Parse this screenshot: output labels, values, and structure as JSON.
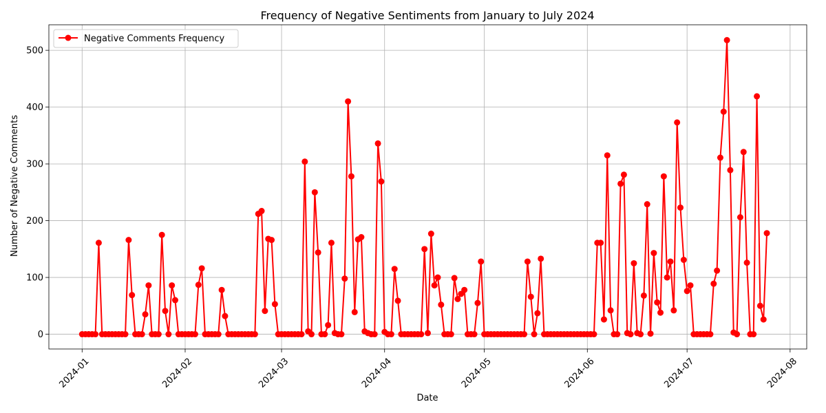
{
  "chart_data": {
    "type": "line",
    "title": "Frequency of Negative Sentiments from January to July 2024",
    "xlabel": "Date",
    "ylabel": "Number of Negative Comments",
    "x_ticks": [
      "2024-01",
      "2024-02",
      "2024-03",
      "2024-04",
      "2024-05",
      "2024-06",
      "2024-07",
      "2024-08"
    ],
    "y_ticks": [
      0,
      100,
      200,
      300,
      400,
      500
    ],
    "xlim": [
      "2023-12-22",
      "2024-08-06"
    ],
    "ylim": [
      -26,
      545
    ],
    "grid": true,
    "legend_position": "top-left",
    "colors": {
      "series": "#ff0000",
      "grid": "#b0b0b0"
    },
    "series": [
      {
        "name": "Negative Comments Frequency",
        "points": [
          [
            "2024-01-01",
            0
          ],
          [
            "2024-01-02",
            0
          ],
          [
            "2024-01-03",
            0
          ],
          [
            "2024-01-04",
            0
          ],
          [
            "2024-01-05",
            0
          ],
          [
            "2024-01-06",
            161
          ],
          [
            "2024-01-07",
            0
          ],
          [
            "2024-01-08",
            0
          ],
          [
            "2024-01-09",
            0
          ],
          [
            "2024-01-10",
            0
          ],
          [
            "2024-01-11",
            0
          ],
          [
            "2024-01-12",
            0
          ],
          [
            "2024-01-13",
            0
          ],
          [
            "2024-01-14",
            0
          ],
          [
            "2024-01-15",
            166
          ],
          [
            "2024-01-16",
            69
          ],
          [
            "2024-01-17",
            0
          ],
          [
            "2024-01-18",
            0
          ],
          [
            "2024-01-19",
            0
          ],
          [
            "2024-01-20",
            35
          ],
          [
            "2024-01-21",
            86
          ],
          [
            "2024-01-22",
            0
          ],
          [
            "2024-01-23",
            0
          ],
          [
            "2024-01-24",
            0
          ],
          [
            "2024-01-25",
            175
          ],
          [
            "2024-01-26",
            41
          ],
          [
            "2024-01-27",
            0
          ],
          [
            "2024-01-28",
            86
          ],
          [
            "2024-01-29",
            60
          ],
          [
            "2024-01-30",
            0
          ],
          [
            "2024-01-31",
            0
          ],
          [
            "2024-02-01",
            0
          ],
          [
            "2024-02-02",
            0
          ],
          [
            "2024-02-03",
            0
          ],
          [
            "2024-02-04",
            0
          ],
          [
            "2024-02-05",
            87
          ],
          [
            "2024-02-06",
            116
          ],
          [
            "2024-02-07",
            0
          ],
          [
            "2024-02-08",
            0
          ],
          [
            "2024-02-09",
            0
          ],
          [
            "2024-02-10",
            0
          ],
          [
            "2024-02-11",
            0
          ],
          [
            "2024-02-12",
            78
          ],
          [
            "2024-02-13",
            32
          ],
          [
            "2024-02-14",
            0
          ],
          [
            "2024-02-15",
            0
          ],
          [
            "2024-02-16",
            0
          ],
          [
            "2024-02-17",
            0
          ],
          [
            "2024-02-18",
            0
          ],
          [
            "2024-02-19",
            0
          ],
          [
            "2024-02-20",
            0
          ],
          [
            "2024-02-21",
            0
          ],
          [
            "2024-02-22",
            0
          ],
          [
            "2024-02-23",
            212
          ],
          [
            "2024-02-24",
            217
          ],
          [
            "2024-02-25",
            41
          ],
          [
            "2024-02-26",
            168
          ],
          [
            "2024-02-27",
            166
          ],
          [
            "2024-02-28",
            53
          ],
          [
            "2024-02-29",
            0
          ],
          [
            "2024-03-01",
            0
          ],
          [
            "2024-03-02",
            0
          ],
          [
            "2024-03-03",
            0
          ],
          [
            "2024-03-04",
            0
          ],
          [
            "2024-03-05",
            0
          ],
          [
            "2024-03-06",
            0
          ],
          [
            "2024-03-07",
            0
          ],
          [
            "2024-03-08",
            304
          ],
          [
            "2024-03-09",
            5
          ],
          [
            "2024-03-10",
            0
          ],
          [
            "2024-03-11",
            250
          ],
          [
            "2024-03-12",
            144
          ],
          [
            "2024-03-13",
            0
          ],
          [
            "2024-03-14",
            0
          ],
          [
            "2024-03-15",
            16
          ],
          [
            "2024-03-16",
            161
          ],
          [
            "2024-03-17",
            2
          ],
          [
            "2024-03-18",
            0
          ],
          [
            "2024-03-19",
            0
          ],
          [
            "2024-03-20",
            98
          ],
          [
            "2024-03-21",
            410
          ],
          [
            "2024-03-22",
            278
          ],
          [
            "2024-03-23",
            39
          ],
          [
            "2024-03-24",
            167
          ],
          [
            "2024-03-25",
            171
          ],
          [
            "2024-03-26",
            5
          ],
          [
            "2024-03-27",
            2
          ],
          [
            "2024-03-28",
            0
          ],
          [
            "2024-03-29",
            0
          ],
          [
            "2024-03-30",
            336
          ],
          [
            "2024-03-31",
            269
          ],
          [
            "2024-04-01",
            4
          ],
          [
            "2024-04-02",
            0
          ],
          [
            "2024-04-03",
            0
          ],
          [
            "2024-04-04",
            115
          ],
          [
            "2024-04-05",
            59
          ],
          [
            "2024-04-06",
            0
          ],
          [
            "2024-04-07",
            0
          ],
          [
            "2024-04-08",
            0
          ],
          [
            "2024-04-09",
            0
          ],
          [
            "2024-04-10",
            0
          ],
          [
            "2024-04-11",
            0
          ],
          [
            "2024-04-12",
            0
          ],
          [
            "2024-04-13",
            150
          ],
          [
            "2024-04-14",
            2
          ],
          [
            "2024-04-15",
            177
          ],
          [
            "2024-04-16",
            86
          ],
          [
            "2024-04-17",
            100
          ],
          [
            "2024-04-18",
            52
          ],
          [
            "2024-04-19",
            0
          ],
          [
            "2024-04-20",
            0
          ],
          [
            "2024-04-21",
            0
          ],
          [
            "2024-04-22",
            99
          ],
          [
            "2024-04-23",
            62
          ],
          [
            "2024-04-24",
            71
          ],
          [
            "2024-04-25",
            78
          ],
          [
            "2024-04-26",
            0
          ],
          [
            "2024-04-27",
            0
          ],
          [
            "2024-04-28",
            0
          ],
          [
            "2024-04-29",
            55
          ],
          [
            "2024-04-30",
            128
          ],
          [
            "2024-05-01",
            0
          ],
          [
            "2024-05-02",
            0
          ],
          [
            "2024-05-03",
            0
          ],
          [
            "2024-05-04",
            0
          ],
          [
            "2024-05-05",
            0
          ],
          [
            "2024-05-06",
            0
          ],
          [
            "2024-05-07",
            0
          ],
          [
            "2024-05-08",
            0
          ],
          [
            "2024-05-09",
            0
          ],
          [
            "2024-05-10",
            0
          ],
          [
            "2024-05-11",
            0
          ],
          [
            "2024-05-12",
            0
          ],
          [
            "2024-05-13",
            0
          ],
          [
            "2024-05-14",
            128
          ],
          [
            "2024-05-15",
            66
          ],
          [
            "2024-05-16",
            0
          ],
          [
            "2024-05-17",
            37
          ],
          [
            "2024-05-18",
            133
          ],
          [
            "2024-05-19",
            0
          ],
          [
            "2024-05-20",
            0
          ],
          [
            "2024-05-21",
            0
          ],
          [
            "2024-05-22",
            0
          ],
          [
            "2024-05-23",
            0
          ],
          [
            "2024-05-24",
            0
          ],
          [
            "2024-05-25",
            0
          ],
          [
            "2024-05-26",
            0
          ],
          [
            "2024-05-27",
            0
          ],
          [
            "2024-05-28",
            0
          ],
          [
            "2024-05-29",
            0
          ],
          [
            "2024-05-30",
            0
          ],
          [
            "2024-05-31",
            0
          ],
          [
            "2024-06-01",
            0
          ],
          [
            "2024-06-02",
            0
          ],
          [
            "2024-06-03",
            0
          ],
          [
            "2024-06-04",
            161
          ],
          [
            "2024-06-05",
            161
          ],
          [
            "2024-06-06",
            26
          ],
          [
            "2024-06-07",
            315
          ],
          [
            "2024-06-08",
            42
          ],
          [
            "2024-06-09",
            0
          ],
          [
            "2024-06-10",
            0
          ],
          [
            "2024-06-11",
            265
          ],
          [
            "2024-06-12",
            281
          ],
          [
            "2024-06-13",
            2
          ],
          [
            "2024-06-14",
            0
          ],
          [
            "2024-06-15",
            125
          ],
          [
            "2024-06-16",
            2
          ],
          [
            "2024-06-17",
            0
          ],
          [
            "2024-06-18",
            68
          ],
          [
            "2024-06-19",
            229
          ],
          [
            "2024-06-20",
            1
          ],
          [
            "2024-06-21",
            143
          ],
          [
            "2024-06-22",
            56
          ],
          [
            "2024-06-23",
            38
          ],
          [
            "2024-06-24",
            278
          ],
          [
            "2024-06-25",
            100
          ],
          [
            "2024-06-26",
            128
          ],
          [
            "2024-06-27",
            42
          ],
          [
            "2024-06-28",
            373
          ],
          [
            "2024-06-29",
            223
          ],
          [
            "2024-06-30",
            131
          ],
          [
            "2024-07-01",
            76
          ],
          [
            "2024-07-02",
            86
          ],
          [
            "2024-07-03",
            0
          ],
          [
            "2024-07-04",
            0
          ],
          [
            "2024-07-05",
            0
          ],
          [
            "2024-07-06",
            0
          ],
          [
            "2024-07-07",
            0
          ],
          [
            "2024-07-08",
            0
          ],
          [
            "2024-07-09",
            89
          ],
          [
            "2024-07-10",
            112
          ],
          [
            "2024-07-11",
            311
          ],
          [
            "2024-07-12",
            392
          ],
          [
            "2024-07-13",
            518
          ],
          [
            "2024-07-14",
            289
          ],
          [
            "2024-07-15",
            3
          ],
          [
            "2024-07-16",
            0
          ],
          [
            "2024-07-17",
            206
          ],
          [
            "2024-07-18",
            321
          ],
          [
            "2024-07-19",
            126
          ],
          [
            "2024-07-20",
            0
          ],
          [
            "2024-07-21",
            0
          ],
          [
            "2024-07-22",
            419
          ],
          [
            "2024-07-23",
            50
          ],
          [
            "2024-07-24",
            26
          ],
          [
            "2024-07-25",
            178
          ]
        ]
      }
    ]
  }
}
